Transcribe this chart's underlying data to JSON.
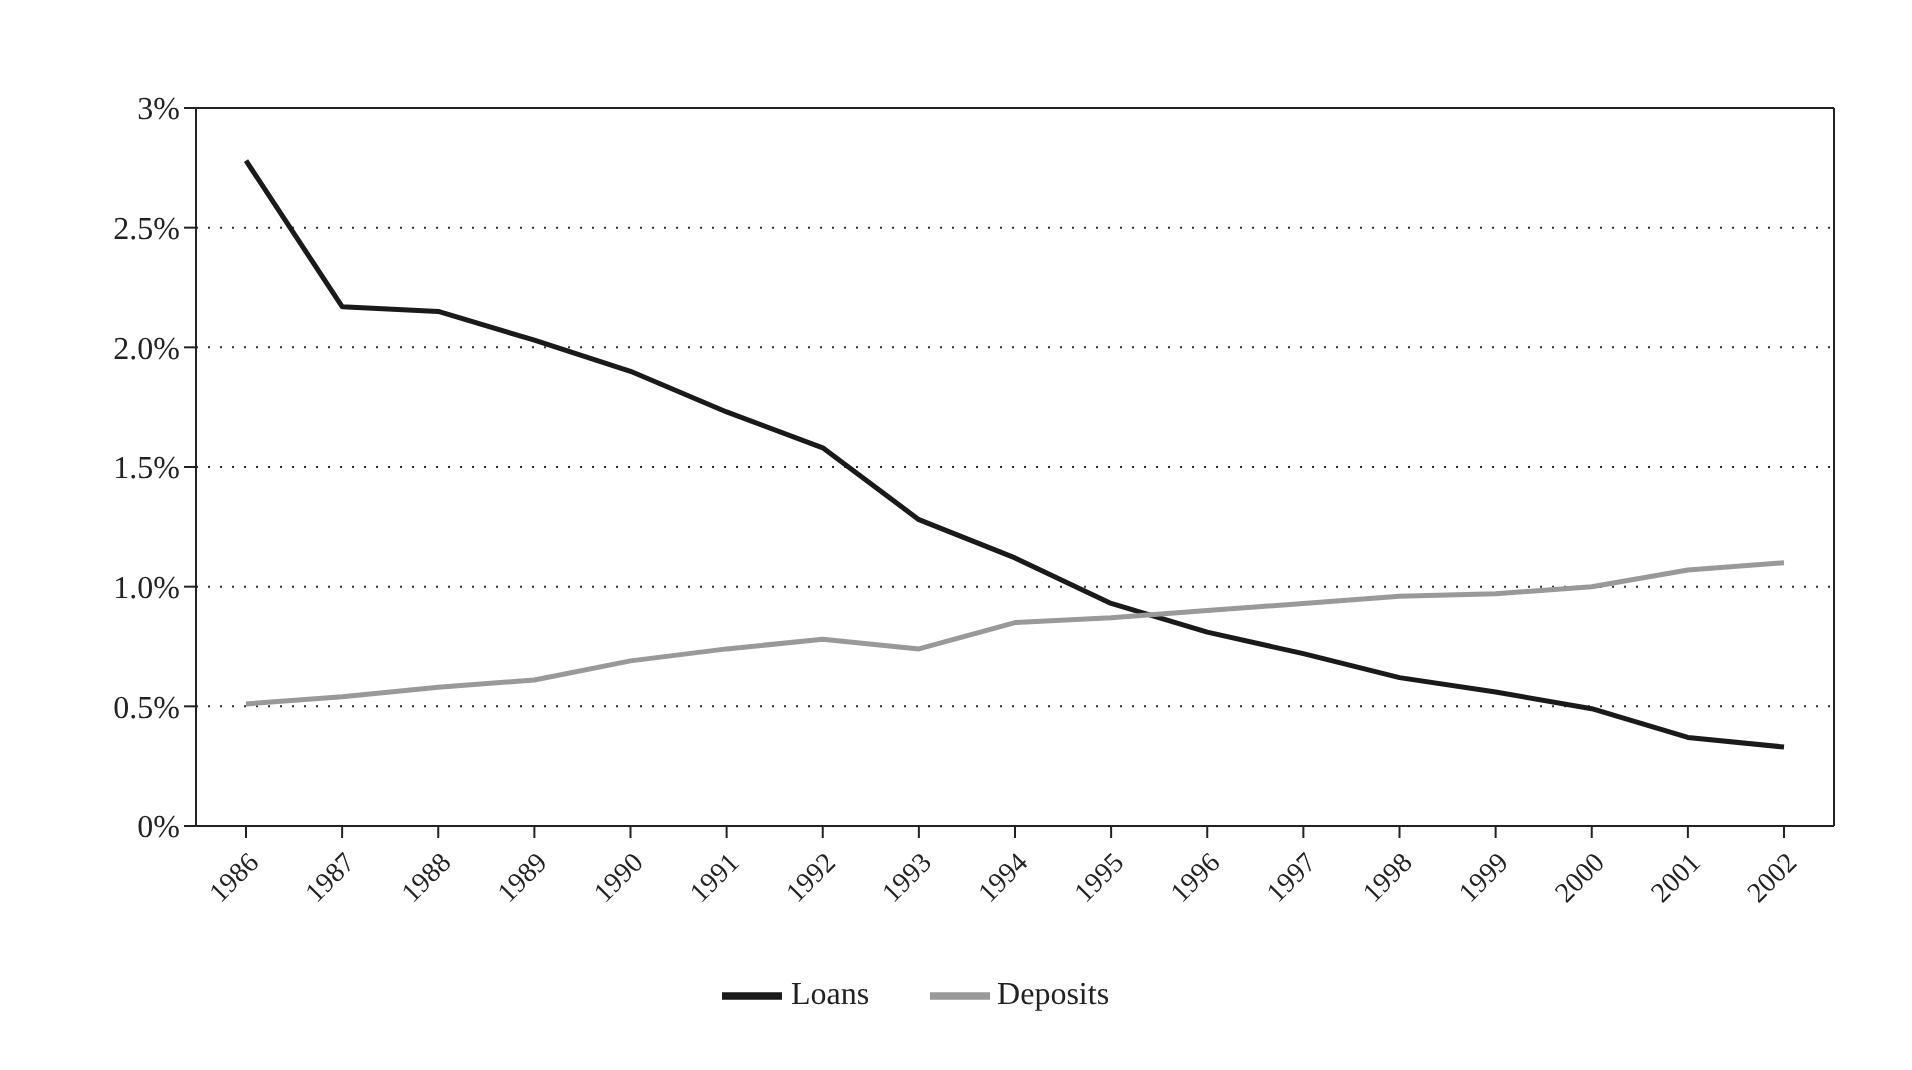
{
  "chart_data": {
    "type": "line",
    "categories": [
      "1986",
      "1987",
      "1988",
      "1989",
      "1990",
      "1991",
      "1992",
      "1993",
      "1994",
      "1995",
      "1996",
      "1997",
      "1998",
      "1999",
      "2000",
      "2001",
      "2002"
    ],
    "series": [
      {
        "name": "Loans",
        "color": "#1a1a1a",
        "values": [
          2.78,
          2.17,
          2.15,
          2.03,
          1.9,
          1.73,
          1.58,
          1.28,
          1.12,
          0.93,
          0.81,
          0.72,
          0.62,
          0.56,
          0.49,
          0.37,
          0.33
        ]
      },
      {
        "name": "Deposits",
        "color": "#999999",
        "values": [
          0.51,
          0.54,
          0.58,
          0.61,
          0.69,
          0.74,
          0.78,
          0.74,
          0.85,
          0.87,
          0.9,
          0.93,
          0.96,
          0.97,
          1.0,
          1.07,
          1.1
        ]
      }
    ],
    "ylim": [
      0,
      3
    ],
    "yticks": [
      {
        "value": 0,
        "label": "0%"
      },
      {
        "value": 0.5,
        "label": "0.5%"
      },
      {
        "value": 1,
        "label": "1.0%"
      },
      {
        "value": 1.5,
        "label": "1.5%"
      },
      {
        "value": 2,
        "label": "2.0%"
      },
      {
        "value": 2.5,
        "label": "2.5%"
      },
      {
        "value": 3,
        "label": "3%"
      }
    ],
    "grid": "y",
    "legend": "bottom",
    "marker": "none",
    "line_style": "solid"
  }
}
